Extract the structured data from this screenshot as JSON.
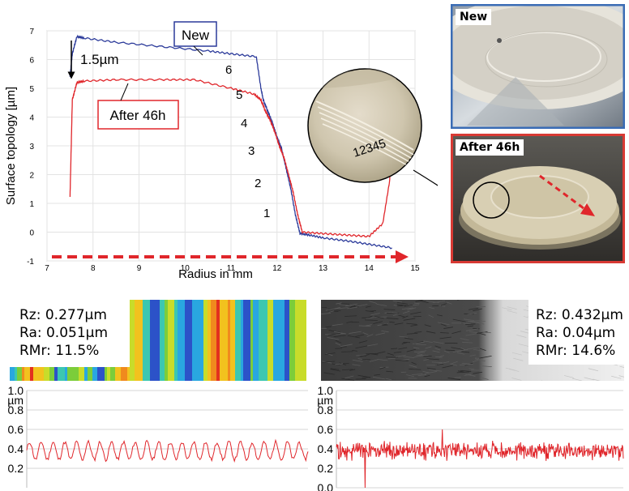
{
  "chart_data": [
    {
      "type": "line",
      "xlabel": "Radius in mm",
      "ylabel": "Surface topology [µm]",
      "xlim": [
        7,
        15
      ],
      "ylim": [
        -1,
        7
      ],
      "xticks": [
        "7",
        "8",
        "9",
        "10",
        "11",
        "12",
        "13",
        "14",
        "15"
      ],
      "yticks": [
        "-1",
        "0",
        "1",
        "2",
        "3",
        "4",
        "5",
        "6",
        "7"
      ],
      "grid": true,
      "series": [
        {
          "name": "New",
          "color": "#2b3a9a",
          "x": [
            7.5,
            7.55,
            7.65,
            7.8,
            8.5,
            9.5,
            10.5,
            11.0,
            11.55,
            11.65,
            11.7,
            11.8,
            11.9,
            12.0,
            12.1,
            12.2,
            12.3,
            12.4,
            12.5,
            12.7,
            13.0,
            13.5,
            14.0,
            14.5
          ],
          "y": [
            5.4,
            6.2,
            6.8,
            6.75,
            6.6,
            6.45,
            6.3,
            6.2,
            6.1,
            5.0,
            4.6,
            4.2,
            3.8,
            3.3,
            2.9,
            2.2,
            1.5,
            0.6,
            -0.05,
            -0.1,
            -0.2,
            -0.3,
            -0.42,
            -0.55
          ]
        },
        {
          "name": "After 46h",
          "color": "#e0262b",
          "x": [
            7.5,
            7.55,
            7.65,
            7.8,
            8.5,
            9.5,
            10.2,
            11.0,
            11.5,
            11.65,
            11.75,
            11.85,
            11.95,
            12.05,
            12.15,
            12.25,
            12.35,
            12.45,
            12.55,
            13.0,
            13.5,
            14.0,
            14.3,
            14.45,
            14.5
          ],
          "y": [
            1.2,
            4.6,
            5.2,
            5.25,
            5.3,
            5.3,
            5.3,
            5.0,
            4.8,
            4.6,
            4.2,
            3.9,
            3.5,
            3.0,
            2.6,
            2.0,
            1.4,
            0.6,
            0.0,
            -0.05,
            -0.1,
            -0.15,
            0.3,
            1.8,
            3.4
          ]
        }
      ],
      "annotations": {
        "new_label": "New",
        "after_label": "After 46h",
        "offset_label": "1.5µm",
        "step_labels": [
          "1",
          "2",
          "3",
          "4",
          "5",
          "6"
        ]
      }
    },
    {
      "type": "line",
      "ylabel": "µm",
      "ylim": [
        0.0,
        1.0
      ],
      "yticks": [
        "1.0",
        "0.8",
        "0.6",
        "0.4",
        "0.2"
      ],
      "color": "#e0262b",
      "profile": {
        "mean": 0.38,
        "amplitude": 0.09,
        "cycles": 24,
        "noise": 0.02
      }
    },
    {
      "type": "line",
      "ylabel": "µm",
      "ylim": [
        0.0,
        1.0
      ],
      "yticks": [
        "1.0",
        "0.8",
        "0.6",
        "0.4",
        "0.2",
        "0.0"
      ],
      "color": "#e0262b",
      "profile": {
        "mean": 0.38,
        "amplitude": 0.05,
        "noise": 0.06,
        "spikes": [
          [
            0.1,
            0.8
          ],
          [
            0.1,
            0.0
          ],
          [
            0.37,
            0.6
          ]
        ]
      }
    }
  ],
  "photos": {
    "new_label": "New",
    "after_label": "After 46h",
    "zoom_numbers": "12345",
    "new_border": "#3a6cb5",
    "after_border": "#d83a34"
  },
  "surface_left": {
    "rz": "Rz: 0.277µm",
    "ra": "Ra: 0.051µm",
    "rmr": "RMr: 11.5%"
  },
  "surface_right": {
    "rz": "Rz: 0.432µm",
    "ra": "Ra: 0.04µm",
    "rmr": "RMr: 14.6%"
  }
}
